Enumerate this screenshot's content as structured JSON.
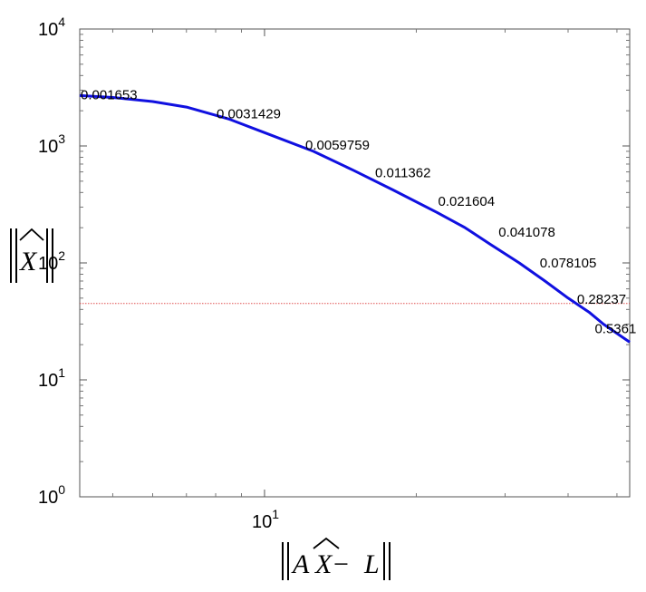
{
  "chart_data": {
    "type": "line",
    "x_scale": "log",
    "y_scale": "log",
    "xlim": [
      4.3,
      53
    ],
    "ylim": [
      1,
      10000
    ],
    "grid": false,
    "xlabel_parts": {
      "left": "A",
      "hat": "X",
      "mid": " − ",
      "right": "L"
    },
    "ylabel_parts": {
      "hat": "X"
    },
    "y_ticks": [
      {
        "value": 1,
        "base": "10",
        "exp": "0"
      },
      {
        "value": 10,
        "base": "10",
        "exp": "1"
      },
      {
        "value": 100,
        "base": "10",
        "exp": "2"
      },
      {
        "value": 1000,
        "base": "10",
        "exp": "3"
      },
      {
        "value": 10000,
        "base": "10",
        "exp": "4"
      }
    ],
    "x_ticks": [
      {
        "value": 10,
        "base": "10",
        "exp": "1"
      }
    ],
    "series": [
      {
        "color": "#1010e0",
        "x": [
          4.3,
          5.0,
          6.0,
          7.0,
          8.5,
          10.0,
          12.5,
          15.0,
          18.0,
          22.0,
          25.0,
          28.0,
          32.0,
          36.0,
          40.0,
          44.0,
          47.0,
          50.0,
          53.0
        ],
        "y": [
          2700,
          2600,
          2400,
          2150,
          1700,
          1300,
          900,
          620,
          420,
          270,
          200,
          145,
          100,
          70,
          50,
          38,
          30,
          25,
          21
        ]
      }
    ],
    "reference_line": {
      "y": 45,
      "color": "#e05050",
      "style": "dotted"
    },
    "point_labels": [
      {
        "text": "0.001653",
        "x": 4.3,
        "y": 2700
      },
      {
        "text": "0.0031429",
        "x": 8.0,
        "y": 1850
      },
      {
        "text": "0.0059759",
        "x": 12.0,
        "y": 1000
      },
      {
        "text": "0.011362",
        "x": 16.5,
        "y": 580
      },
      {
        "text": "0.021604",
        "x": 22.0,
        "y": 330
      },
      {
        "text": "0.041078",
        "x": 29.0,
        "y": 180
      },
      {
        "text": "0.078105",
        "x": 35.0,
        "y": 98
      },
      {
        "text": "0.28237",
        "x": 41.5,
        "y": 48
      },
      {
        "text": "0.5361",
        "x": 45.0,
        "y": 27
      }
    ]
  }
}
